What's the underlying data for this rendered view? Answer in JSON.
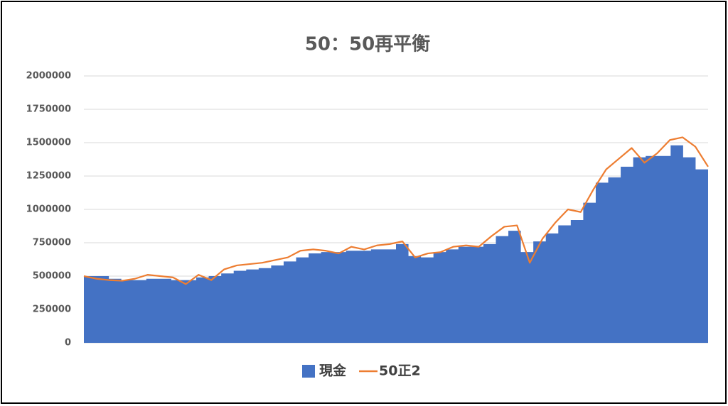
{
  "chart_data": {
    "type": "area-line",
    "title": "50：50再平衡",
    "series": [
      {
        "name": "現金",
        "color": "#4472c4",
        "kind": "area",
        "values": [
          500000,
          500000,
          480000,
          470000,
          470000,
          480000,
          480000,
          470000,
          470000,
          490000,
          500000,
          520000,
          540000,
          550000,
          560000,
          580000,
          610000,
          640000,
          670000,
          680000,
          680000,
          690000,
          690000,
          700000,
          700000,
          740000,
          650000,
          640000,
          680000,
          700000,
          720000,
          720000,
          740000,
          800000,
          840000,
          680000,
          760000,
          820000,
          880000,
          920000,
          1050000,
          1200000,
          1240000,
          1320000,
          1390000,
          1400000,
          1400000,
          1480000,
          1390000,
          1300000
        ]
      },
      {
        "name": "50正2",
        "color": "#ed7d31",
        "kind": "line",
        "values": [
          500000,
          480000,
          470000,
          465000,
          480000,
          510000,
          500000,
          490000,
          440000,
          510000,
          470000,
          550000,
          580000,
          590000,
          600000,
          620000,
          640000,
          690000,
          700000,
          690000,
          670000,
          720000,
          700000,
          730000,
          740000,
          760000,
          640000,
          670000,
          680000,
          720000,
          730000,
          720000,
          800000,
          870000,
          880000,
          600000,
          780000,
          900000,
          1000000,
          980000,
          1150000,
          1300000,
          1380000,
          1460000,
          1350000,
          1420000,
          1520000,
          1540000,
          1470000,
          1320000
        ]
      }
    ],
    "ylim": [
      0,
      2000000
    ],
    "yticks": [
      0,
      250000,
      500000,
      750000,
      1000000,
      1250000,
      1500000,
      1750000,
      2000000
    ],
    "grid": true,
    "legend": "bottom"
  }
}
